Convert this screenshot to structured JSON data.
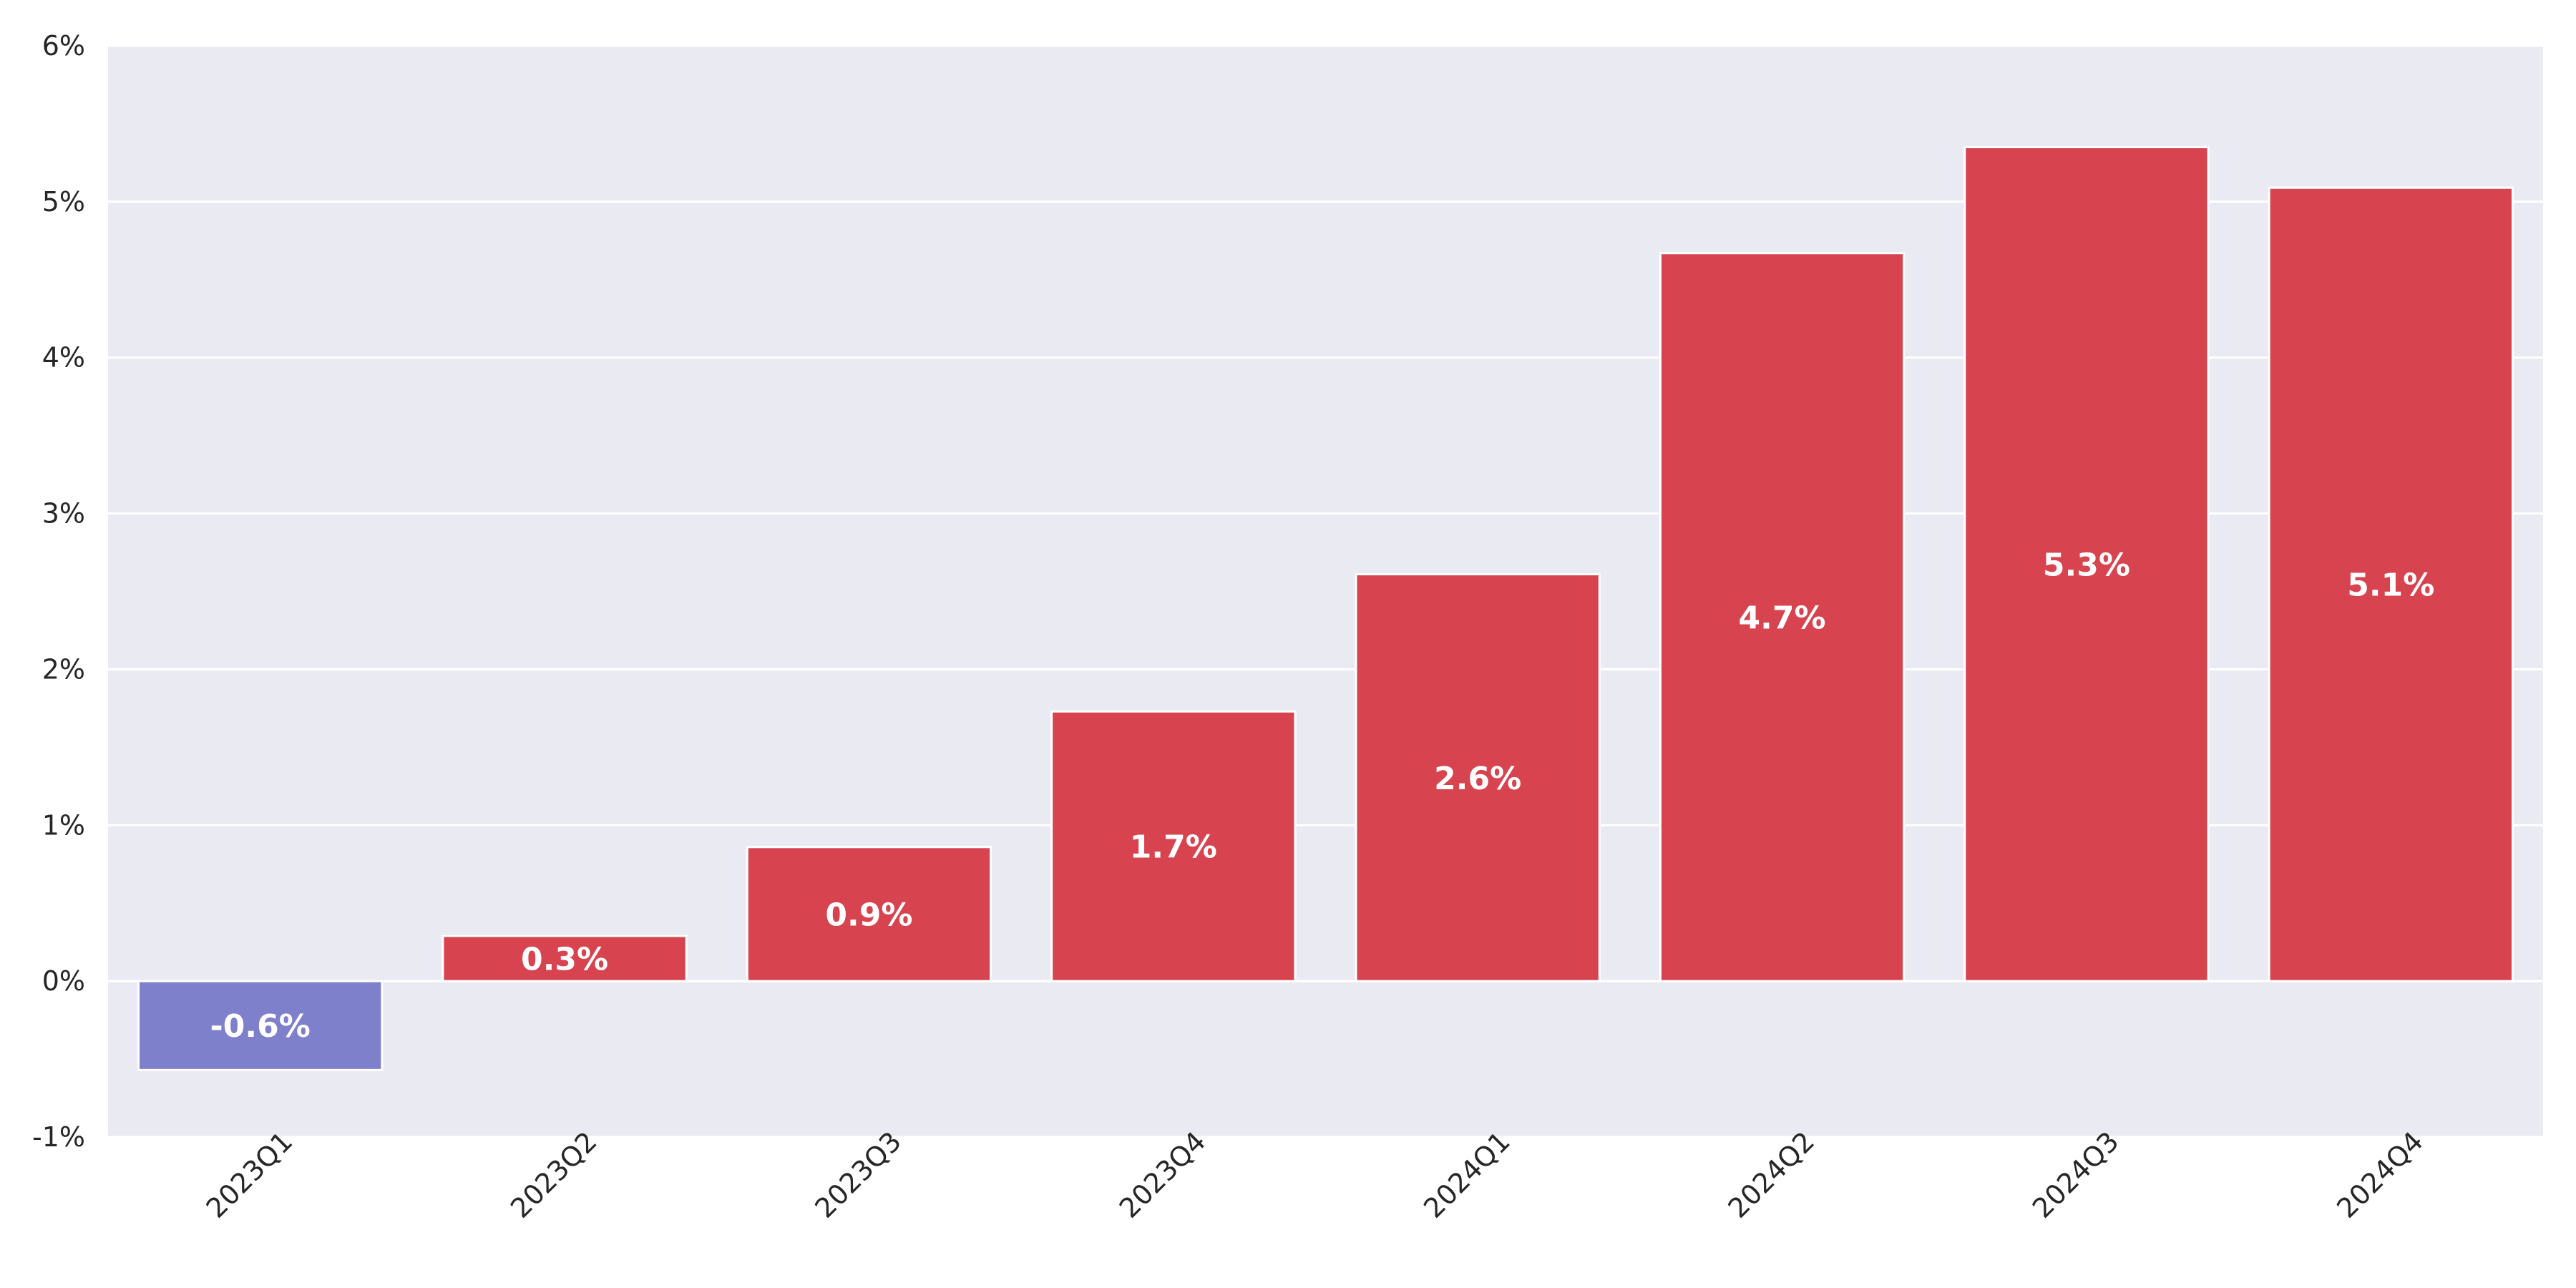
{
  "chart_data": {
    "type": "bar",
    "title": "",
    "xlabel": "",
    "ylabel": "",
    "categories": [
      "2023Q1",
      "2023Q2",
      "2023Q3",
      "2023Q4",
      "2024Q1",
      "2024Q2",
      "2024Q3",
      "2024Q4"
    ],
    "values": [
      -0.57,
      0.29,
      0.86,
      1.73,
      2.61,
      4.67,
      5.35,
      5.09
    ],
    "data_labels": [
      "-0.6%",
      "0.3%",
      "0.9%",
      "1.7%",
      "2.6%",
      "4.7%",
      "5.3%",
      "5.1%"
    ],
    "ylim": [
      -1,
      6
    ],
    "y_ticks": [
      -1,
      0,
      1,
      2,
      3,
      4,
      5,
      6
    ],
    "y_tick_labels": [
      "-1%",
      "0%",
      "1%",
      "2%",
      "3%",
      "4%",
      "5%",
      "6%"
    ],
    "grid": true,
    "legend": "none",
    "x_tick_rotation": "45°",
    "colors": {
      "positive": "#d7434f",
      "negative": "#7f80cb",
      "plot_background": "#eaeaf2",
      "grid": "#ffffff",
      "bar_edge": "#ffffff",
      "data_label": "#ffffff",
      "tick_label": "#262626"
    }
  }
}
